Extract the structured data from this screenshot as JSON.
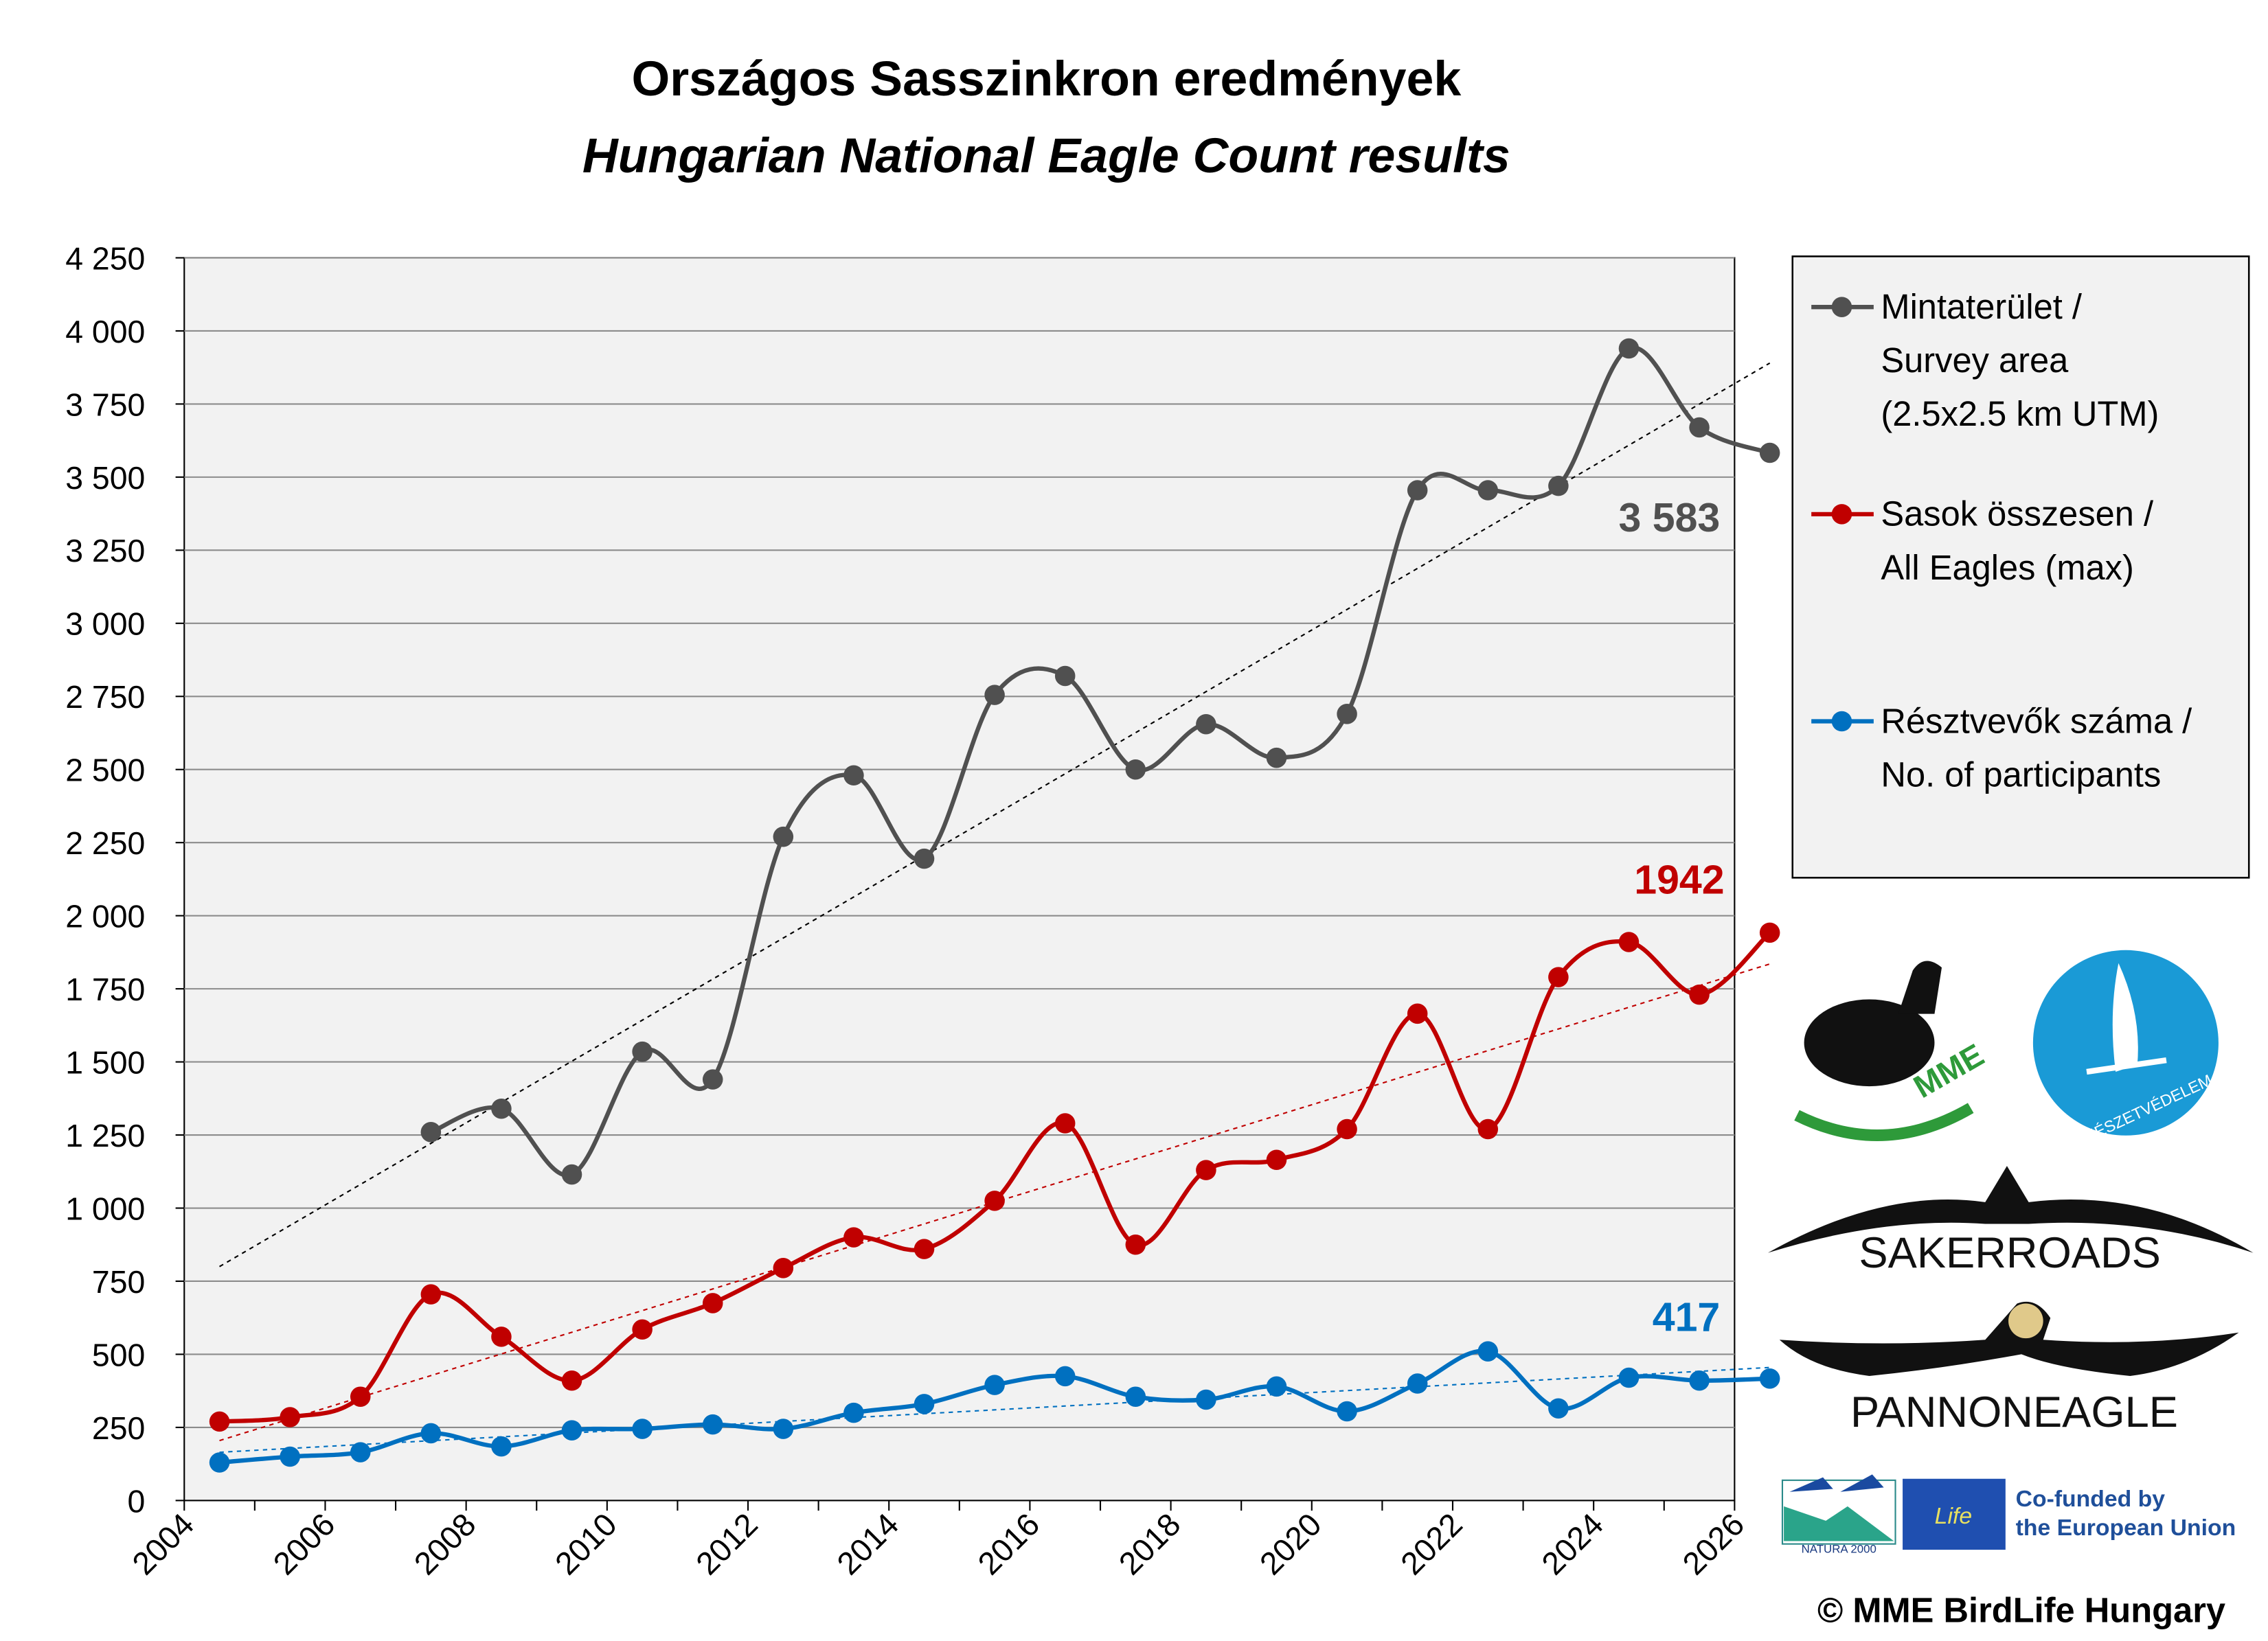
{
  "chart_data": {
    "type": "line",
    "title": "Országos Sasszinkron eredmények",
    "subtitle": "Hungarian National Eagle Count results",
    "xlabel": "",
    "ylabel": "",
    "xlim": [
      2004,
      2026
    ],
    "ylim": [
      0,
      4250
    ],
    "grid": true,
    "legend_placement": "right",
    "x_tick_labels": [
      "2004",
      "2006",
      "2008",
      "2010",
      "2012",
      "2014",
      "2016",
      "2018",
      "2020",
      "2022",
      "2024",
      "2026"
    ],
    "y_tick_labels": [
      "0",
      "250",
      "500",
      "750",
      "1 000",
      "1 250",
      "1 500",
      "1 750",
      "2 000",
      "2 250",
      "2 500",
      "2 750",
      "3 000",
      "3 250",
      "3 500",
      "3 750",
      "4 000",
      "4 250"
    ],
    "x": [
      2004.5,
      2005.5,
      2006.5,
      2007.5,
      2008.5,
      2009.5,
      2010.5,
      2011.5,
      2012.5,
      2013.5,
      2014.5,
      2015.5,
      2016.5,
      2017.5,
      2018.5,
      2019.5,
      2020.5,
      2021.5,
      2022.5,
      2023.5,
      2024.5,
      2025.5,
      2026.5
    ],
    "series": [
      {
        "name": "Mintaterület / Survey area (2.5x2.5 km UTM)",
        "color": "#505050",
        "trend_color": "#000000",
        "legend": [
          "Mintaterület /",
          "Survey area",
          "(2.5x2.5 km UTM)"
        ],
        "values": [
          null,
          null,
          null,
          1260,
          1340,
          1115,
          1535,
          1440,
          2270,
          2480,
          2195,
          2755,
          2820,
          2500,
          2655,
          2540,
          2690,
          3455,
          3455,
          3470,
          3940,
          3670,
          3583
        ],
        "trend": [
          800,
          3890
        ],
        "end_label": "3 583"
      },
      {
        "name": "Sasok összesen / All Eagles (max)",
        "color": "#c00000",
        "trend_color": "#c00000",
        "legend": [
          "Sasok összesen /",
          "All Eagles (max)"
        ],
        "values": [
          270,
          285,
          355,
          705,
          560,
          410,
          585,
          675,
          795,
          900,
          860,
          1025,
          1290,
          875,
          1130,
          1165,
          1270,
          1665,
          1270,
          1790,
          1910,
          1730,
          1942
        ],
        "trend": [
          205,
          1835
        ],
        "end_label": "1942"
      },
      {
        "name": "Résztvevők száma / No. of participants",
        "color": "#0070c0",
        "trend_color": "#0070c0",
        "legend": [
          "Résztvevők száma /",
          "No. of participants"
        ],
        "values": [
          130,
          150,
          165,
          230,
          185,
          240,
          245,
          260,
          245,
          300,
          330,
          395,
          425,
          355,
          345,
          390,
          305,
          400,
          510,
          315,
          420,
          410,
          417
        ],
        "trend": [
          165,
          455
        ],
        "end_label": "417"
      }
    ]
  },
  "logos": {
    "mme": "MME",
    "termeszetvedelem": "TERMÉSZETVÉDELEM",
    "sakerroads": "SAKERROADS",
    "pannoneagle": "PANNONEAGLE",
    "natura": "NATURA 2000",
    "life": "Life",
    "eu_line1": "Co-funded by",
    "eu_line2": "the European Union"
  },
  "copyright": "© MME BirdLife Hungary"
}
